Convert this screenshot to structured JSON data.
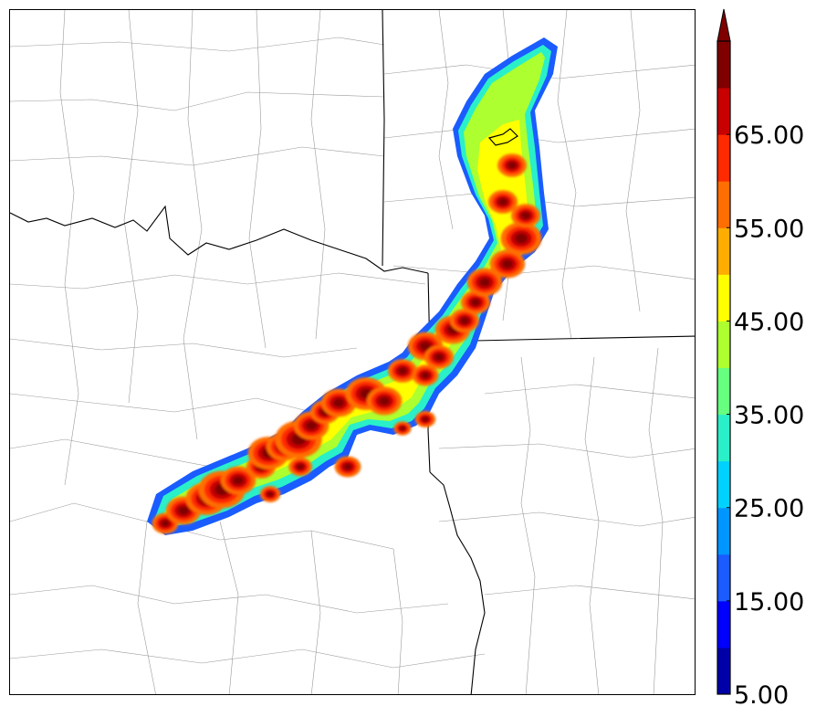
{
  "map": {
    "description_visible": false
  },
  "colorbar": {
    "ticks": [
      "5.00",
      "15.00",
      "25.00",
      "35.00",
      "45.00",
      "55.00",
      "65.00"
    ],
    "levels": [
      5,
      10,
      15,
      20,
      25,
      30,
      35,
      40,
      45,
      50,
      55,
      60,
      65,
      70
    ],
    "colors": [
      "#0000a8",
      "#0000ff",
      "#1a5cff",
      "#0096ff",
      "#00d2ff",
      "#29f0c8",
      "#66ff80",
      "#adff2f",
      "#ffff00",
      "#ffad00",
      "#ff6e00",
      "#ff2a00",
      "#c80000",
      "#800000"
    ],
    "extend": "max"
  }
}
